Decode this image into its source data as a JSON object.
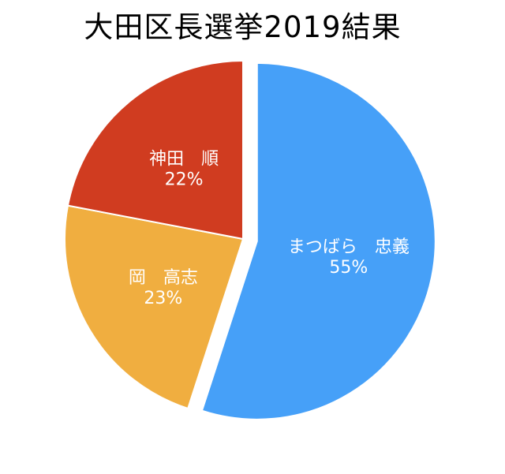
{
  "chart_data": {
    "type": "pie",
    "title": "大田区長選挙2019結果",
    "slices": [
      {
        "name": "まつばら　忠義",
        "value": 55,
        "percent_label": "55%",
        "color": "#46A0F8",
        "exploded": true
      },
      {
        "name": "岡　高志",
        "value": 23,
        "percent_label": "23%",
        "color": "#F0AE40"
      },
      {
        "name": "神田　順",
        "value": 22,
        "percent_label": "22%",
        "color": "#D03C20"
      }
    ],
    "start": "12 o'clock",
    "direction": "clockwise",
    "legend": "none"
  }
}
